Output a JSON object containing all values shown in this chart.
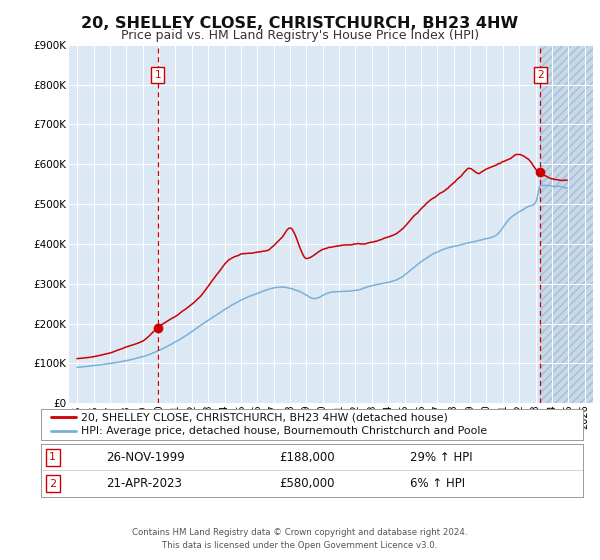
{
  "title": "20, SHELLEY CLOSE, CHRISTCHURCH, BH23 4HW",
  "subtitle": "Price paid vs. HM Land Registry's House Price Index (HPI)",
  "title_fontsize": 11.5,
  "subtitle_fontsize": 9,
  "bg_color": "#dce9f5",
  "outer_bg": "#f0f0f0",
  "hatch_color": "#c5d8ec",
  "grid_color": "#ffffff",
  "red_line_color": "#cc0000",
  "blue_line_color": "#7ab0d8",
  "marker_color": "#cc0000",
  "dashed_line_color": "#cc0000",
  "label_box_color": "#ffffff",
  "label_box_edge": "#cc0000",
  "xlim": [
    1994.5,
    2026.5
  ],
  "ylim": [
    0,
    900000
  ],
  "yticks": [
    0,
    100000,
    200000,
    300000,
    400000,
    500000,
    600000,
    700000,
    800000,
    900000
  ],
  "xticks": [
    1995,
    1996,
    1997,
    1998,
    1999,
    2000,
    2001,
    2002,
    2003,
    2004,
    2005,
    2006,
    2007,
    2008,
    2009,
    2010,
    2011,
    2012,
    2013,
    2014,
    2015,
    2016,
    2017,
    2018,
    2019,
    2020,
    2021,
    2022,
    2023,
    2024,
    2025,
    2026
  ],
  "sale1_x": 1999.92,
  "sale1_y": 188000,
  "sale1_label": "1",
  "sale1_date": "26-NOV-1999",
  "sale1_price": "£188,000",
  "sale1_hpi": "29% ↑ HPI",
  "sale2_x": 2023.3,
  "sale2_y": 580000,
  "sale2_label": "2",
  "sale2_date": "21-APR-2023",
  "sale2_price": "£580,000",
  "sale2_hpi": "6% ↑ HPI",
  "legend_line1": "20, SHELLEY CLOSE, CHRISTCHURCH, BH23 4HW (detached house)",
  "legend_line2": "HPI: Average price, detached house, Bournemouth Christchurch and Poole",
  "footer": "Contains HM Land Registry data © Crown copyright and database right 2024.\nThis data is licensed under the Open Government Licence v3.0.",
  "hatch_start": 2023.3,
  "hatch_end": 2026.5
}
